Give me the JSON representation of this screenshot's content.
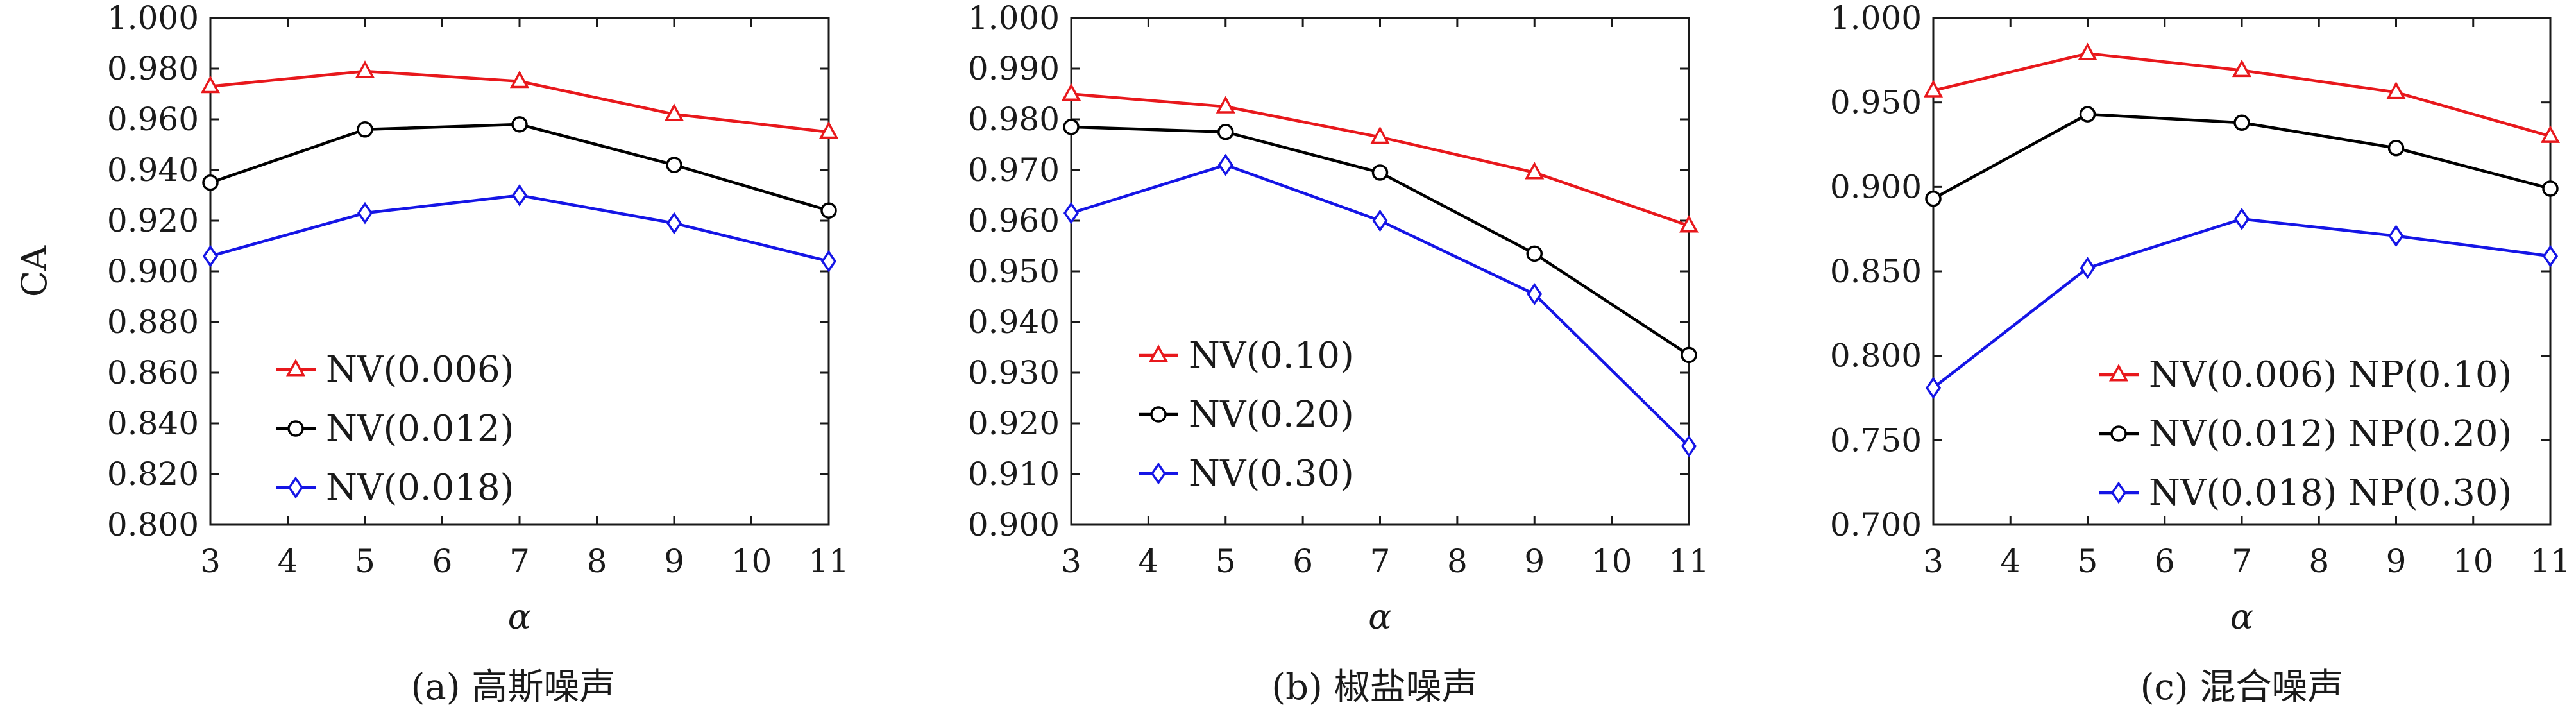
{
  "chart_data": [
    {
      "type": "line",
      "caption": "(a) 高斯噪声",
      "xlabel": "α",
      "ylabel": "CA",
      "xlim": [
        3,
        11
      ],
      "ylim": [
        0.8,
        1.0
      ],
      "xticks": [
        3,
        4,
        5,
        6,
        7,
        8,
        9,
        10,
        11
      ],
      "xtick_labels": [
        "3",
        "4",
        "5",
        "6",
        "7",
        "8",
        "9",
        "10",
        "11"
      ],
      "yticks": [
        0.8,
        0.82,
        0.84,
        0.86,
        0.88,
        0.9,
        0.92,
        0.94,
        0.96,
        0.98,
        1.0
      ],
      "ytick_labels": [
        "0.800",
        "0.820",
        "0.840",
        "0.860",
        "0.880",
        "0.900",
        "0.920",
        "0.940",
        "0.960",
        "0.980",
        "1.000"
      ],
      "legend": "left",
      "grid": false,
      "x": [
        3,
        5,
        7,
        9,
        11
      ],
      "series": [
        {
          "name": "NV(0.006)",
          "color": "#e8181c",
          "marker": "triangle",
          "values": [
            0.973,
            0.979,
            0.975,
            0.962,
            0.955
          ]
        },
        {
          "name": "NV(0.012)",
          "color": "#000000",
          "marker": "circle",
          "values": [
            0.935,
            0.956,
            0.958,
            0.942,
            0.924
          ]
        },
        {
          "name": "NV(0.018)",
          "color": "#1515e6",
          "marker": "diamond",
          "values": [
            0.906,
            0.923,
            0.93,
            0.919,
            0.904
          ]
        }
      ]
    },
    {
      "type": "line",
      "caption": "(b) 椒盐噪声",
      "xlabel": "α",
      "ylabel": "",
      "xlim": [
        3,
        11
      ],
      "ylim": [
        0.9,
        1.0
      ],
      "xticks": [
        3,
        4,
        5,
        6,
        7,
        8,
        9,
        10,
        11
      ],
      "xtick_labels": [
        "3",
        "4",
        "5",
        "6",
        "7",
        "8",
        "9",
        "10",
        "11"
      ],
      "yticks": [
        0.9,
        0.91,
        0.92,
        0.93,
        0.94,
        0.95,
        0.96,
        0.97,
        0.98,
        0.99,
        1.0
      ],
      "ytick_labels": [
        "0.900",
        "0.910",
        "0.920",
        "0.930",
        "0.940",
        "0.950",
        "0.960",
        "0.970",
        "0.980",
        "0.990",
        "1.000"
      ],
      "legend": "left",
      "grid": false,
      "x": [
        3,
        5,
        7,
        9,
        11
      ],
      "series": [
        {
          "name": "NV(0.10)",
          "color": "#e8181c",
          "marker": "triangle",
          "values": [
            0.985,
            0.9825,
            0.9765,
            0.9695,
            0.959
          ]
        },
        {
          "name": "NV(0.20)",
          "color": "#000000",
          "marker": "circle",
          "values": [
            0.9785,
            0.9775,
            0.9695,
            0.9535,
            0.9335
          ]
        },
        {
          "name": "NV(0.30)",
          "color": "#1515e6",
          "marker": "diamond",
          "values": [
            0.9615,
            0.971,
            0.96,
            0.9455,
            0.9155
          ]
        }
      ]
    },
    {
      "type": "line",
      "caption": "(c) 混合噪声",
      "xlabel": "α",
      "ylabel": "",
      "xlim": [
        3,
        11
      ],
      "ylim": [
        0.7,
        1.0
      ],
      "xticks": [
        3,
        4,
        5,
        6,
        7,
        8,
        9,
        10,
        11
      ],
      "xtick_labels": [
        "3",
        "4",
        "5",
        "6",
        "7",
        "8",
        "9",
        "10",
        "11"
      ],
      "yticks": [
        0.7,
        0.75,
        0.8,
        0.85,
        0.9,
        0.95,
        1.0
      ],
      "ytick_labels": [
        "0.700",
        "0.750",
        "0.800",
        "0.850",
        "0.900",
        "0.950",
        "1.000"
      ],
      "legend": "bottom-right",
      "grid": false,
      "x": [
        3,
        5,
        7,
        9,
        11
      ],
      "series": [
        {
          "name": "NV(0.006) NP(0.10)",
          "color": "#e8181c",
          "marker": "triangle",
          "values": [
            0.957,
            0.979,
            0.969,
            0.956,
            0.93
          ]
        },
        {
          "name": "NV(0.012) NP(0.20)",
          "color": "#000000",
          "marker": "circle",
          "values": [
            0.893,
            0.943,
            0.938,
            0.923,
            0.899
          ]
        },
        {
          "name": "NV(0.018) NP(0.30)",
          "color": "#1515e6",
          "marker": "diamond",
          "values": [
            0.781,
            0.852,
            0.881,
            0.871,
            0.859
          ]
        }
      ]
    }
  ]
}
